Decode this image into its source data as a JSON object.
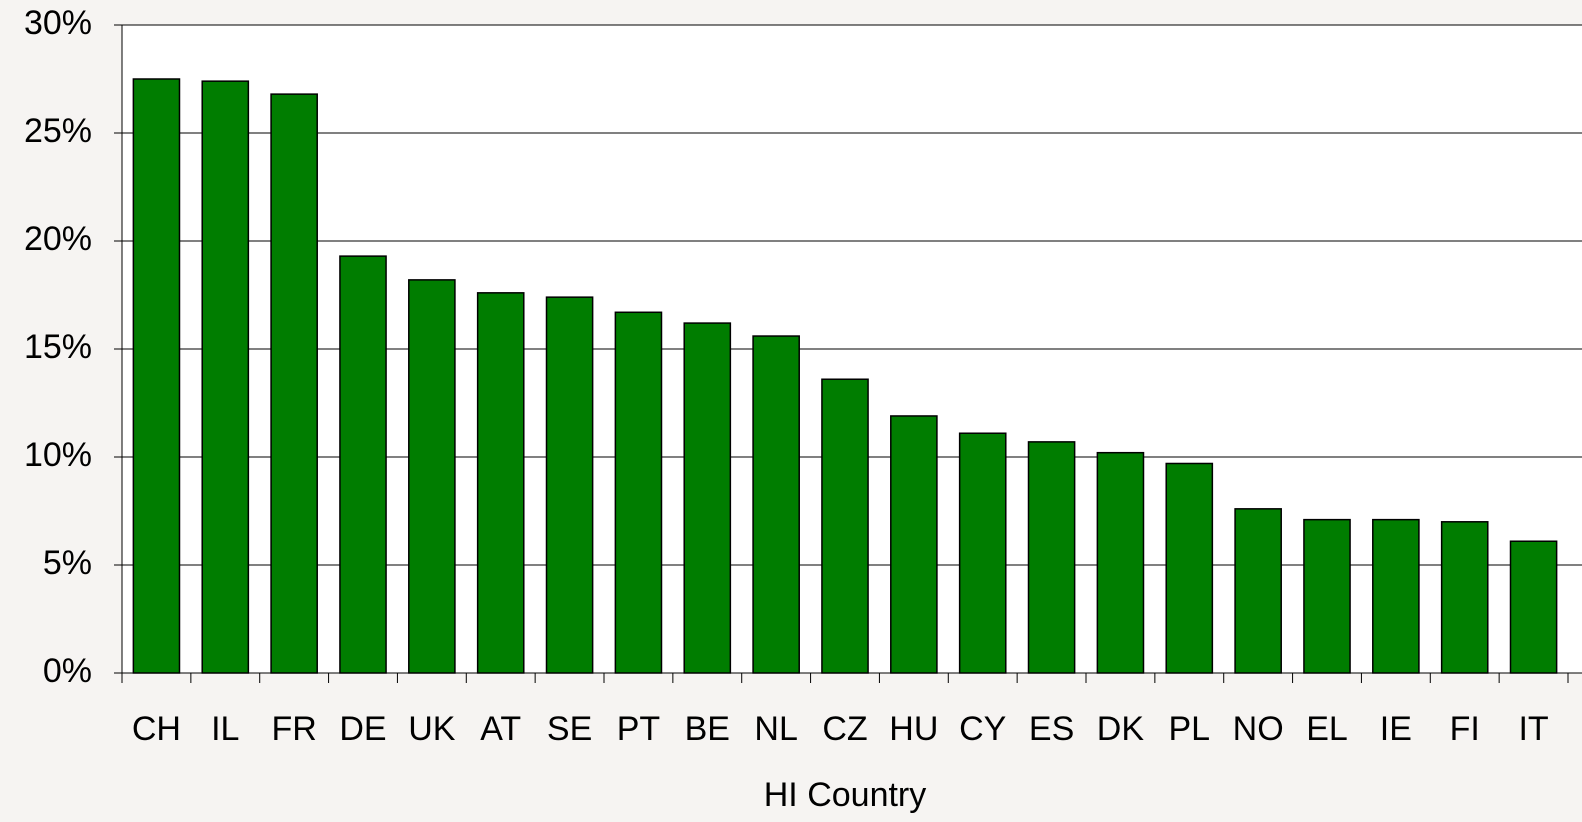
{
  "chart_data": {
    "type": "bar",
    "x_label": "HI Country",
    "categories": [
      "CH",
      "IL",
      "FR",
      "DE",
      "UK",
      "AT",
      "SE",
      "PT",
      "BE",
      "NL",
      "CZ",
      "HU",
      "CY",
      "ES",
      "DK",
      "PL",
      "NO",
      "EL",
      "IE",
      "FI",
      "IT"
    ],
    "values": [
      27.5,
      27.4,
      26.8,
      19.3,
      18.2,
      17.6,
      17.4,
      16.7,
      16.2,
      15.6,
      13.6,
      11.9,
      11.1,
      10.7,
      10.2,
      9.7,
      7.6,
      7.1,
      7.1,
      7.0,
      6.1
    ],
    "color": "#007d00",
    "ylim": [
      0,
      30
    ],
    "yticks": [
      {
        "value": 0,
        "label": "0%"
      },
      {
        "value": 5,
        "label": "5%"
      },
      {
        "value": 10,
        "label": "10%"
      },
      {
        "value": 15,
        "label": "15%"
      },
      {
        "value": 20,
        "label": "20%"
      },
      {
        "value": 25,
        "label": "25%"
      },
      {
        "value": 30,
        "label": "30%"
      }
    ],
    "grid": true
  }
}
